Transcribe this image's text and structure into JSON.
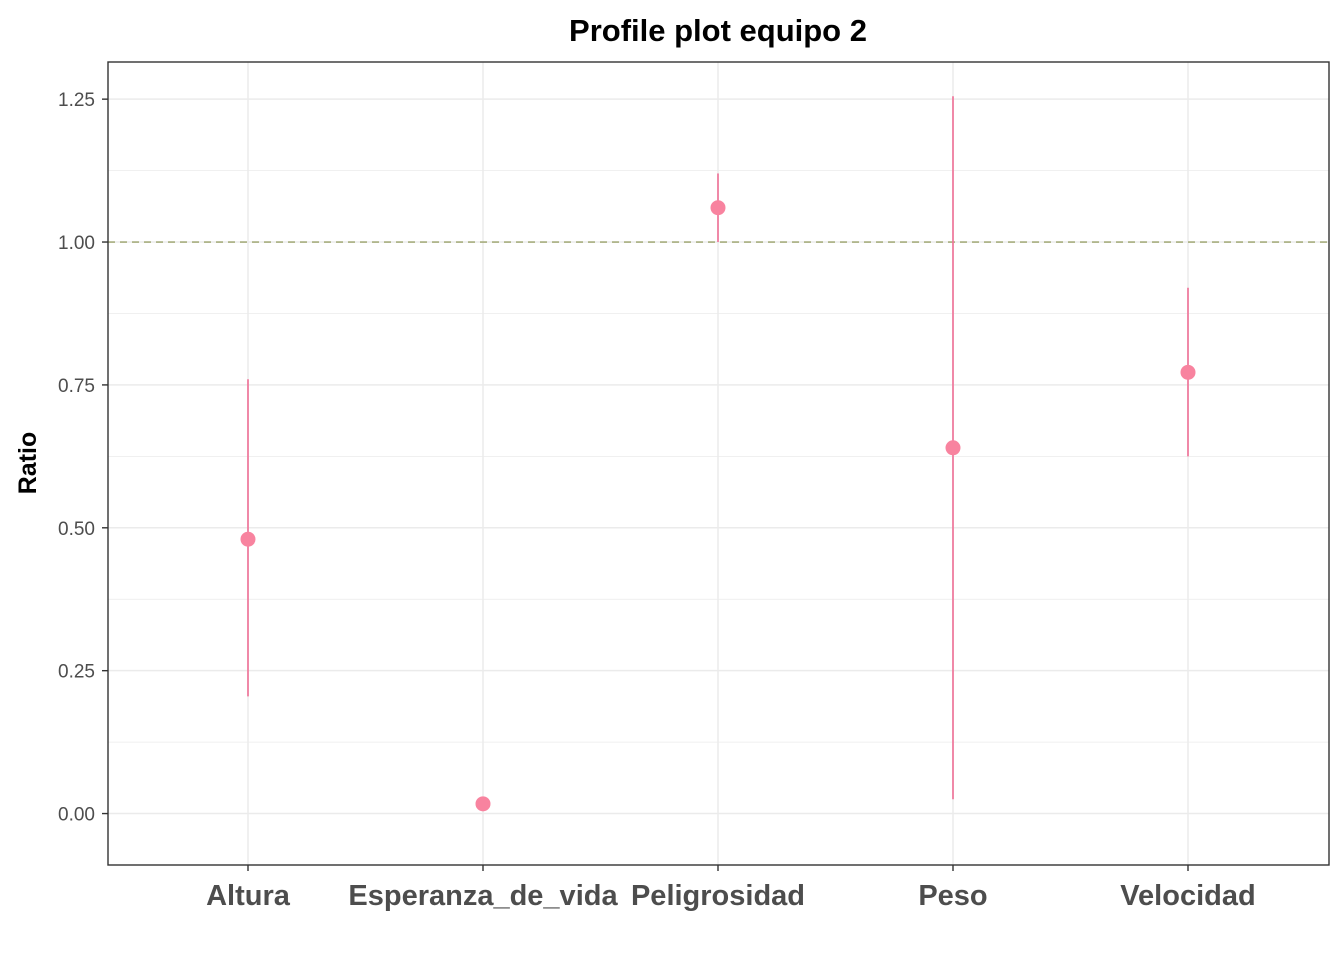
{
  "chart_data": {
    "type": "scatter",
    "title": "Profile plot equipo 2",
    "xlabel": "",
    "ylabel": "Ratio",
    "ylim": [
      -0.09,
      1.315
    ],
    "y_ticks": [
      "0.00",
      "0.25",
      "0.50",
      "0.75",
      "1.00",
      "1.25"
    ],
    "y_tick_values": [
      0,
      0.25,
      0.5,
      0.75,
      1.0,
      1.25
    ],
    "categories": [
      "Altura",
      "Esperanza_de_vida",
      "Peligrosidad",
      "Peso",
      "Velocidad"
    ],
    "series": [
      {
        "values": [
          0.48,
          0.017,
          1.06,
          0.64,
          0.772
        ],
        "lower": [
          0.205,
          0.017,
          1.0,
          0.025,
          0.625
        ],
        "upper": [
          0.76,
          0.017,
          1.12,
          1.255,
          0.92
        ]
      }
    ],
    "reference_line": 1.0,
    "grid": true,
    "colors": {
      "point": "#f8839f",
      "errorbar": "#f0769a",
      "reference_line": "#9aa26a",
      "grid": "#ebebeb",
      "panel_border": "#333333"
    }
  }
}
